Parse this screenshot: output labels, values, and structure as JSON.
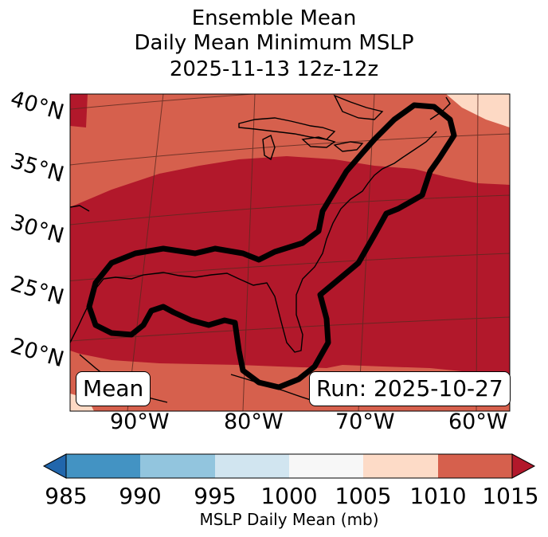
{
  "title": {
    "line1": "Ensemble Mean",
    "line2": "Daily Mean Minimum MSLP",
    "line3": "2025-11-13 12z-12z"
  },
  "map": {
    "lat_labels": [
      "40°N",
      "35°N",
      "30°N",
      "25°N",
      "20°N"
    ],
    "lon_labels": [
      "90°W",
      "80°W",
      "70°W",
      "60°W"
    ],
    "mean_box": "Mean",
    "run_box": "Run: 2025-10-27",
    "field_colors": {
      "1005-1010": "#fdd9c4",
      "1010-1015": "#d6604d",
      "above-1015": "#b2182b"
    },
    "contour_color": "#000000"
  },
  "colorbar": {
    "ticks": [
      "985",
      "990",
      "995",
      "1000",
      "1005",
      "1010",
      "1015"
    ],
    "label": "MSLP Daily Mean (mb)",
    "colors": [
      "#2166ac",
      "#4393c3",
      "#92c5de",
      "#d1e5f0",
      "#f7f7f7",
      "#fddbc7",
      "#d6604d",
      "#b2182b"
    ]
  }
}
